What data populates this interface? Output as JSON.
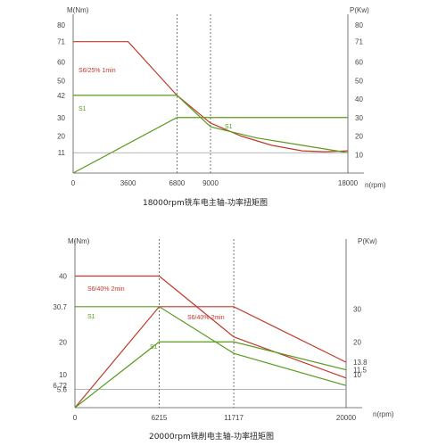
{
  "chart_data": [
    {
      "type": "line",
      "title": "18000rpm铣车电主轴-功率扭矩图",
      "ylabel_left": "M(Nm)",
      "ylabel_right": "P(Kw)",
      "xlabel": "n(rpm)",
      "xlim": [
        0,
        18000
      ],
      "ylim_left": [
        0,
        80
      ],
      "ylim_right": [
        0,
        80
      ],
      "x_ticks": [
        "0",
        "3600",
        "6800",
        "9000",
        "18000"
      ],
      "y_ticks_left": [
        "80",
        "71",
        "60",
        "50",
        "42",
        "30",
        "20",
        "11"
      ],
      "y_ticks_right": [
        "80",
        "71",
        "60",
        "50",
        "40",
        "30",
        "20",
        "10"
      ],
      "vlines": [
        6800,
        9000
      ],
      "series": [
        {
          "name": "S6/25% 1min",
          "axis": "left",
          "color": "#c0392b",
          "x": [
            0,
            3600,
            6800,
            9000,
            11000,
            13000,
            15000,
            16500,
            18000
          ],
          "y": [
            71,
            71,
            42,
            27,
            20,
            15,
            12,
            11.5,
            12
          ]
        },
        {
          "name": "S1",
          "axis": "left",
          "color": "#5a9a1e",
          "x": [
            0,
            6800,
            9000,
            12000,
            15000,
            18000
          ],
          "y": [
            42,
            42,
            25,
            19,
            15,
            11
          ]
        },
        {
          "name": "S1",
          "axis": "right",
          "color": "#5a9a1e",
          "x": [
            0,
            6800,
            18000
          ],
          "y": [
            0,
            30,
            30
          ]
        },
        {
          "name": "",
          "axis": "left",
          "color": "#888888",
          "x": [
            0,
            18000
          ],
          "y": [
            11,
            11
          ]
        }
      ]
    },
    {
      "type": "line",
      "title": "20000rpm铣削电主轴-功率扭矩图",
      "ylabel_left": "M(Nm)",
      "ylabel_right": "P(Kw)",
      "xlabel": "n(rpm)",
      "xlim": [
        0,
        20000
      ],
      "ylim_left": [
        0,
        48
      ],
      "ylim_right": [
        0,
        48
      ],
      "x_ticks": [
        "0",
        "6215",
        "11717",
        "20000"
      ],
      "y_ticks_left": [
        "40",
        "30.7",
        "20",
        "10",
        "6.72",
        "5.6"
      ],
      "y_ticks_right": [
        "30",
        "20",
        "13.8",
        "11.5",
        "10"
      ],
      "vlines": [
        6215,
        11717
      ],
      "series": [
        {
          "name": "S6/40% 2min",
          "axis": "left",
          "color": "#c0392b",
          "x": [
            0,
            6215,
            11717,
            20000
          ],
          "y": [
            40,
            40,
            21.5,
            9
          ]
        },
        {
          "name": "S6/40% 2min",
          "axis": "right",
          "color": "#c0392b",
          "x": [
            0,
            6215,
            11717,
            20000
          ],
          "y": [
            0,
            30.7,
            30.7,
            13.8
          ]
        },
        {
          "name": "S1",
          "axis": "left",
          "color": "#5a9a1e",
          "x": [
            0,
            6215,
            11717,
            20000
          ],
          "y": [
            30.7,
            30.7,
            16.5,
            6.72
          ]
        },
        {
          "name": "S1",
          "axis": "right",
          "color": "#5a9a1e",
          "x": [
            0,
            6215,
            11717,
            20000
          ],
          "y": [
            0,
            20,
            20,
            11.5
          ]
        },
        {
          "name": "",
          "axis": "left",
          "color": "#888888",
          "x": [
            0,
            20000
          ],
          "y": [
            5.6,
            5.6
          ]
        }
      ]
    }
  ]
}
